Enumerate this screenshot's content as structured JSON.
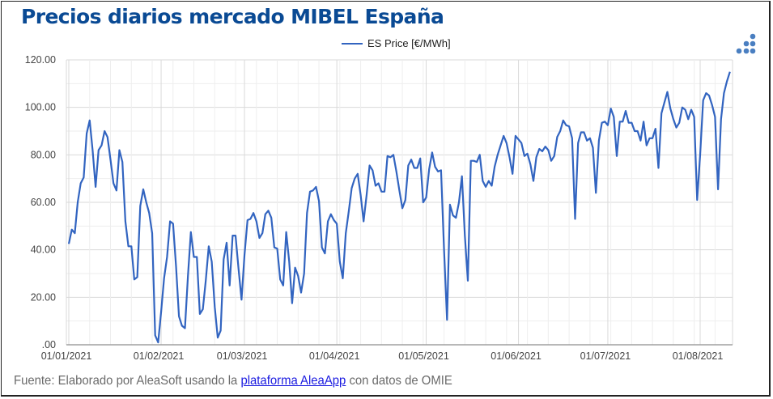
{
  "chart_data": {
    "type": "line",
    "title": "Precios diarios mercado MIBEL España",
    "xlabel": "",
    "ylabel": "",
    "ylim": [
      0,
      120
    ],
    "yticks": [
      0,
      20,
      40,
      60,
      80,
      100,
      120
    ],
    "ytick_labels": [
      ".00",
      "20.00",
      "40.00",
      "60.00",
      "80.00",
      "100.00",
      "120.00"
    ],
    "xtick_labels": [
      "01/01/2021",
      "01/02/2021",
      "01/03/2021",
      "01/04/2021",
      "01/05/2021",
      "01/06/2021",
      "01/07/2021",
      "01/08/2021"
    ],
    "xtick_days": [
      0,
      31,
      59,
      90,
      120,
      151,
      181,
      212
    ],
    "x_range_days": [
      0,
      222
    ],
    "grid": true,
    "legend_position": "top-center",
    "series": [
      {
        "name": "ES Price [€/MWh]",
        "color": "#3264c0",
        "values": [
          42.5,
          48.5,
          47,
          60,
          68,
          70.5,
          89,
          94.5,
          82,
          66.5,
          82,
          84,
          90,
          87.5,
          78,
          68,
          65,
          82,
          77,
          52,
          41.5,
          41.5,
          27.5,
          28.5,
          58.5,
          65.5,
          60,
          55.5,
          47,
          4,
          1,
          14,
          28,
          37,
          52,
          51,
          33,
          12,
          8,
          7,
          29,
          47.5,
          37,
          37,
          13,
          15,
          27,
          41.5,
          35,
          16,
          3,
          6,
          36,
          43,
          25,
          46,
          46,
          32,
          19,
          38,
          52.5,
          53,
          55.5,
          52,
          45,
          47,
          55,
          56.5,
          53.5,
          41,
          40.5,
          27.5,
          25,
          47.5,
          35,
          17.5,
          32.5,
          29,
          22,
          30,
          55.5,
          64.5,
          65,
          66.5,
          60.5,
          41,
          38.5,
          52,
          55,
          52.5,
          51,
          35,
          28,
          47,
          56,
          66,
          70,
          72,
          63,
          52,
          63,
          75.5,
          73.5,
          67,
          68,
          64.5,
          64.5,
          79.5,
          79,
          80,
          73,
          65,
          57.5,
          61,
          75.5,
          78,
          74.5,
          74.5,
          78.5,
          60,
          62,
          74,
          81,
          75,
          73,
          73.5,
          40,
          10.5,
          59,
          54.5,
          53.5,
          60,
          71,
          46,
          27,
          77.5,
          77.5,
          77,
          80,
          69,
          66.5,
          69,
          67,
          75,
          80,
          84,
          88,
          85,
          79,
          72,
          88,
          86.5,
          85,
          79.5,
          80.5,
          76,
          69,
          79,
          82.5,
          81.5,
          83.5,
          82,
          77.5,
          79.5,
          87.5,
          90,
          94.5,
          92.5,
          92,
          87,
          53,
          85,
          89.5,
          89.5,
          86,
          87,
          83,
          64,
          86,
          93.5,
          94,
          92.5,
          99.5,
          96,
          79.5,
          94,
          94,
          98.5,
          93.5,
          93.5,
          90,
          90,
          86,
          94,
          84,
          87,
          87,
          91,
          74.5,
          97.5,
          102,
          106.5,
          99.5,
          95,
          91.5,
          93.5,
          100,
          99,
          95,
          99,
          96,
          61,
          80,
          103,
          106,
          105,
          101,
          96,
          65.5,
          95,
          106,
          111,
          115
        ]
      }
    ]
  },
  "legend": {
    "label": "ES Price [€/MWh]"
  },
  "logo": {
    "icon": "dots-logo-icon",
    "color": "#4a7fc1"
  },
  "source": {
    "prefix": "Fuente: Elaborado por AleaSoft usando la ",
    "link_text": "plataforma AleaApp",
    "suffix": " con datos de OMIE"
  },
  "colors": {
    "title": "#0a4a94",
    "line": "#3264c0",
    "grid_major": "#d9d9d9",
    "grid_minor": "#eeeeee",
    "link": "#1a1ae0"
  }
}
